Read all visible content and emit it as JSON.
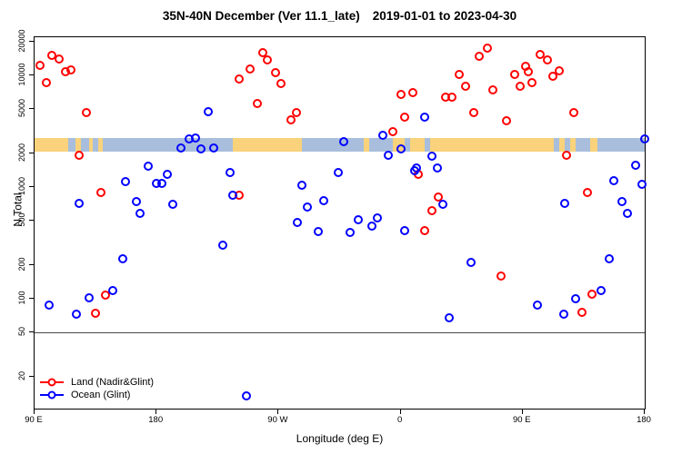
{
  "chart_data": {
    "type": "scatter",
    "title_main": "35N-40N December (Ver 11.1_late)",
    "title_dates": "2019-01-01 to 2023-04-30",
    "xlabel": "Longitude (deg E)",
    "ylabel": "N Total",
    "x_axis": {
      "description": "longitude axis starting at 90E and wrapping eastward 450 degrees",
      "range": [
        0,
        450
      ],
      "ticks": [
        {
          "pos": 0,
          "label": "90 E"
        },
        {
          "pos": 90,
          "label": "180"
        },
        {
          "pos": 180,
          "label": "90 W"
        },
        {
          "pos": 270,
          "label": "0"
        },
        {
          "pos": 360,
          "label": "90 E"
        },
        {
          "pos": 450,
          "label": "180"
        }
      ]
    },
    "y_axis": {
      "scale": "log",
      "range": [
        10.4,
        21900
      ],
      "ticks": [
        20000,
        10000,
        5000,
        2000,
        1000,
        500,
        200,
        100,
        50,
        20
      ],
      "tick_labels": [
        "20000",
        "10000",
        "5000",
        "2000",
        "1000",
        "500",
        "200",
        "100",
        "50",
        "20"
      ]
    },
    "reference_line_n": 50,
    "coastline_band": {
      "n_top": 2760,
      "n_bottom": 2090,
      "land_color": "#F9D27B",
      "ocean_color": "#A9BEDC",
      "segments": [
        {
          "from": 0,
          "to": 25,
          "surface": "land"
        },
        {
          "from": 25,
          "to": 30,
          "surface": "ocean"
        },
        {
          "from": 30,
          "to": 34,
          "surface": "land"
        },
        {
          "from": 34,
          "to": 40,
          "surface": "ocean"
        },
        {
          "from": 40,
          "to": 43,
          "surface": "land"
        },
        {
          "from": 43,
          "to": 47,
          "surface": "ocean"
        },
        {
          "from": 47,
          "to": 50,
          "surface": "land"
        },
        {
          "from": 50,
          "to": 146,
          "surface": "ocean"
        },
        {
          "from": 146,
          "to": 197,
          "surface": "land"
        },
        {
          "from": 197,
          "to": 243,
          "surface": "ocean"
        },
        {
          "from": 243,
          "to": 247,
          "surface": "land"
        },
        {
          "from": 247,
          "to": 264,
          "surface": "ocean"
        },
        {
          "from": 264,
          "to": 273,
          "surface": "land"
        },
        {
          "from": 273,
          "to": 277,
          "surface": "ocean"
        },
        {
          "from": 277,
          "to": 288,
          "surface": "land"
        },
        {
          "from": 288,
          "to": 292,
          "surface": "ocean"
        },
        {
          "from": 292,
          "to": 383,
          "surface": "land"
        },
        {
          "from": 383,
          "to": 387,
          "surface": "ocean"
        },
        {
          "from": 387,
          "to": 391,
          "surface": "land"
        },
        {
          "from": 391,
          "to": 395,
          "surface": "ocean"
        },
        {
          "from": 395,
          "to": 399,
          "surface": "land"
        },
        {
          "from": 399,
          "to": 410,
          "surface": "ocean"
        },
        {
          "from": 410,
          "to": 415,
          "surface": "land"
        },
        {
          "from": 415,
          "to": 450,
          "surface": "ocean"
        }
      ]
    },
    "series": [
      {
        "name": "Land (Nadir&Glint)",
        "color": "#FF0000",
        "points": [
          [
            4,
            12300
          ],
          [
            13,
            15100
          ],
          [
            18,
            14000
          ],
          [
            23,
            10800
          ],
          [
            27,
            11200
          ],
          [
            9,
            8600
          ],
          [
            38,
            4600
          ],
          [
            33,
            1940
          ],
          [
            49,
            900
          ],
          [
            45,
            74
          ],
          [
            52,
            108
          ],
          [
            151,
            9300
          ],
          [
            168,
            15900
          ],
          [
            172,
            13700
          ],
          [
            159,
            11400
          ],
          [
            178,
            10600
          ],
          [
            182,
            8500
          ],
          [
            164,
            5600
          ],
          [
            193,
            4600
          ],
          [
            189,
            4000
          ],
          [
            151,
            840
          ],
          [
            270,
            6800
          ],
          [
            279,
            7000
          ],
          [
            273,
            4200
          ],
          [
            264,
            3100
          ],
          [
            283,
            1290
          ],
          [
            288,
            410
          ],
          [
            293,
            620
          ],
          [
            298,
            820
          ],
          [
            303,
            6400
          ],
          [
            308,
            6400
          ],
          [
            313,
            10200
          ],
          [
            318,
            7900
          ],
          [
            334,
            17500
          ],
          [
            328,
            14800
          ],
          [
            338,
            7400
          ],
          [
            324,
            4600
          ],
          [
            348,
            3900
          ],
          [
            344,
            160
          ],
          [
            373,
            15400
          ],
          [
            378,
            13700
          ],
          [
            362,
            12000
          ],
          [
            354,
            10200
          ],
          [
            364,
            10800
          ],
          [
            358,
            7900
          ],
          [
            367,
            8600
          ],
          [
            382,
            9800
          ],
          [
            387,
            11000
          ],
          [
            398,
            4600
          ],
          [
            392,
            1940
          ],
          [
            408,
            900
          ],
          [
            411,
            110
          ],
          [
            404,
            76
          ]
        ]
      },
      {
        "name": "Ocean (Glint)",
        "color": "#0000FF",
        "points": [
          [
            11,
            88
          ],
          [
            31,
            73
          ],
          [
            40,
            102
          ],
          [
            58,
            118
          ],
          [
            65,
            230
          ],
          [
            139,
            300
          ],
          [
            33,
            710
          ],
          [
            67,
            1110
          ],
          [
            75,
            740
          ],
          [
            78,
            580
          ],
          [
            84,
            1550
          ],
          [
            90,
            1070
          ],
          [
            94,
            1070
          ],
          [
            98,
            1290
          ],
          [
            102,
            700
          ],
          [
            108,
            2250
          ],
          [
            114,
            2710
          ],
          [
            119,
            2760
          ],
          [
            123,
            2210
          ],
          [
            128,
            4700
          ],
          [
            132,
            2250
          ],
          [
            144,
            1360
          ],
          [
            146,
            840
          ],
          [
            156,
            13.6
          ],
          [
            194,
            480
          ],
          [
            197,
            1030
          ],
          [
            201,
            660
          ],
          [
            213,
            750
          ],
          [
            209,
            400
          ],
          [
            224,
            1340
          ],
          [
            228,
            2570
          ],
          [
            233,
            390
          ],
          [
            239,
            510
          ],
          [
            249,
            450
          ],
          [
            253,
            530
          ],
          [
            257,
            2920
          ],
          [
            261,
            1940
          ],
          [
            270,
            2210
          ],
          [
            273,
            410
          ],
          [
            280,
            1390
          ],
          [
            282,
            1490
          ],
          [
            288,
            4200
          ],
          [
            293,
            1900
          ],
          [
            297,
            1470
          ],
          [
            301,
            700
          ],
          [
            306,
            68
          ],
          [
            322,
            210
          ],
          [
            371,
            88
          ],
          [
            390,
            73
          ],
          [
            391,
            720
          ],
          [
            399,
            100
          ],
          [
            418,
            118
          ],
          [
            424,
            230
          ],
          [
            427,
            1130
          ],
          [
            433,
            740
          ],
          [
            437,
            580
          ],
          [
            443,
            1580
          ],
          [
            448,
            1050
          ],
          [
            450,
            2700
          ]
        ]
      }
    ],
    "legend": {
      "position": "bottom-left",
      "items": [
        "Land (Nadir&Glint)",
        "Ocean (Glint)"
      ]
    }
  }
}
